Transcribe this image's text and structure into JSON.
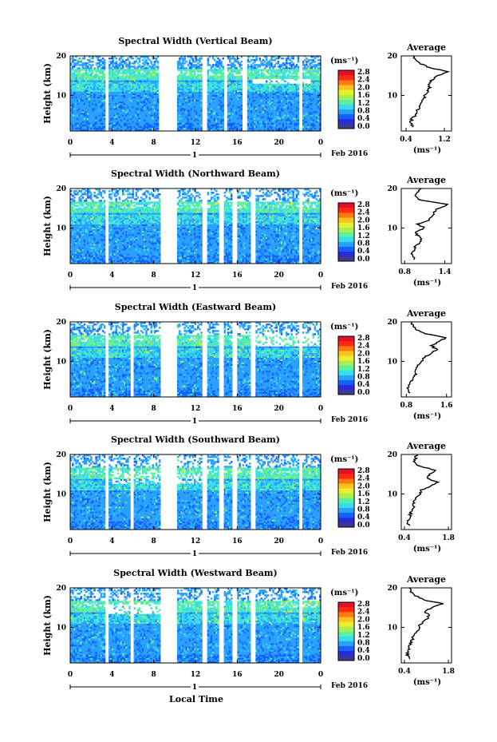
{
  "figure": {
    "xlabel": "Local Time",
    "date_label": "Feb 2016",
    "day_marker": "1",
    "average_title": "Average",
    "colorbar_unit": "(ms⁻¹)",
    "avg_xlabel": "(ms⁻¹)"
  },
  "colorbar": {
    "ticks": [
      "2.8",
      "2.4",
      "2.0",
      "1.6",
      "1.2",
      "0.8",
      "0.4",
      "0.0"
    ],
    "colors": [
      "#3b3b8e",
      "#2a2ad6",
      "#1560ff",
      "#2aa0ff",
      "#37dcf0",
      "#5cf0a0",
      "#a8f050",
      "#e8f030",
      "#ffc020",
      "#ff7a10",
      "#ff2a10",
      "#e0102a"
    ]
  },
  "chart_data": [
    {
      "type": "heatmap",
      "title": "Spectral Width (Vertical Beam)",
      "xlabel": "Local Time",
      "ylabel": "Height (km)",
      "x_ticks": [
        "0",
        "4",
        "8",
        "12",
        "16",
        "20",
        "0"
      ],
      "y_ticks": [
        "20",
        "10"
      ],
      "xlim": [
        0,
        24
      ],
      "ylim": [
        1,
        20
      ],
      "gaps": [
        [
          3.3,
          3.6
        ],
        [
          8.5,
          10.2
        ],
        [
          12.7,
          13.2
        ],
        [
          14.7,
          15.0
        ],
        [
          16.5,
          16.9
        ],
        [
          22.0,
          22.3
        ]
      ],
      "average": {
        "title": "Average",
        "xlabel": "(ms⁻¹)",
        "x_ticks": [
          "0.4",
          "1.2"
        ],
        "x_tick_values": [
          0.4,
          1.2
        ],
        "xlim": [
          0.3,
          1.35
        ],
        "y_ticks": [
          "20",
          "10"
        ],
        "height": [
          2,
          3,
          4,
          5,
          6,
          7,
          8,
          9,
          10,
          11,
          12,
          13,
          14,
          15,
          16,
          17,
          18,
          19,
          20
        ],
        "value": [
          0.55,
          0.5,
          0.52,
          0.6,
          0.62,
          0.68,
          0.7,
          0.75,
          0.8,
          0.85,
          0.9,
          0.88,
          0.95,
          1.05,
          1.3,
          0.9,
          0.7,
          0.6,
          0.55
        ]
      }
    },
    {
      "type": "heatmap",
      "title": "Spectral Width (Northward Beam)",
      "xlabel": "Local Time",
      "ylabel": "Height (km)",
      "x_ticks": [
        "0",
        "4",
        "8",
        "12",
        "16",
        "20",
        "0"
      ],
      "y_ticks": [
        "20",
        "10"
      ],
      "xlim": [
        0,
        24
      ],
      "ylim": [
        1,
        20
      ],
      "gaps": [
        [
          3.3,
          3.6
        ],
        [
          8.6,
          10.2
        ],
        [
          12.7,
          13.1
        ],
        [
          14.3,
          14.7
        ],
        [
          15.6,
          16.0
        ],
        [
          17.3,
          17.7
        ],
        [
          22.0,
          22.3
        ]
      ],
      "average": {
        "title": "Average",
        "xlabel": "(ms⁻¹)",
        "x_ticks": [
          "0.8",
          "1.4"
        ],
        "x_tick_values": [
          0.8,
          1.4
        ],
        "xlim": [
          0.75,
          1.5
        ],
        "y_ticks": [
          "20",
          "10"
        ],
        "height": [
          2,
          3,
          4,
          5,
          6,
          7,
          8,
          9,
          10,
          11,
          12,
          13,
          14,
          15,
          16,
          17,
          18,
          19,
          20
        ],
        "value": [
          0.95,
          0.9,
          0.92,
          0.95,
          1.0,
          1.05,
          1.0,
          0.95,
          1.1,
          1.0,
          1.15,
          1.2,
          1.25,
          1.3,
          1.45,
          1.05,
          0.95,
          1.0,
          1.05
        ]
      }
    },
    {
      "type": "heatmap",
      "title": "Spectral Width (Eastward Beam)",
      "xlabel": "Local Time",
      "ylabel": "Height (km)",
      "x_ticks": [
        "0",
        "4",
        "8",
        "12",
        "16",
        "20",
        "0"
      ],
      "y_ticks": [
        "20",
        "10"
      ],
      "xlim": [
        0,
        24
      ],
      "ylim": [
        1,
        20
      ],
      "gaps": [
        [
          3.3,
          3.6
        ],
        [
          5.8,
          6.1
        ],
        [
          8.6,
          10.2
        ],
        [
          12.7,
          13.1
        ],
        [
          14.3,
          14.7
        ],
        [
          15.6,
          16.0
        ],
        [
          17.3,
          17.7
        ],
        [
          22.0,
          22.3
        ]
      ],
      "average": {
        "title": "Average",
        "xlabel": "(ms⁻¹)",
        "x_ticks": [
          "0.8",
          "1.6"
        ],
        "x_tick_values": [
          0.8,
          1.6
        ],
        "xlim": [
          0.7,
          1.7
        ],
        "y_ticks": [
          "20",
          "10"
        ],
        "height": [
          2,
          3,
          4,
          5,
          6,
          7,
          8,
          9,
          10,
          11,
          12,
          13,
          14,
          15,
          16,
          17,
          18,
          19,
          20
        ],
        "value": [
          0.85,
          0.82,
          0.85,
          0.9,
          0.95,
          1.0,
          1.0,
          1.0,
          1.1,
          1.15,
          1.3,
          1.4,
          1.3,
          1.45,
          1.6,
          1.2,
          1.0,
          0.95,
          0.9
        ]
      }
    },
    {
      "type": "heatmap",
      "title": "Spectral Width (Southward Beam)",
      "xlabel": "Local Time",
      "ylabel": "Height (km)",
      "x_ticks": [
        "0",
        "4",
        "8",
        "12",
        "16",
        "20",
        "0"
      ],
      "y_ticks": [
        "20",
        "10"
      ],
      "xlim": [
        0,
        24
      ],
      "ylim": [
        1,
        20
      ],
      "gaps": [
        [
          3.3,
          3.6
        ],
        [
          5.8,
          6.1
        ],
        [
          8.6,
          10.2
        ],
        [
          12.7,
          13.1
        ],
        [
          14.3,
          14.7
        ],
        [
          15.6,
          16.0
        ],
        [
          17.3,
          17.7
        ],
        [
          22.0,
          22.3
        ]
      ],
      "average": {
        "title": "Average",
        "xlabel": "(ms⁻¹)",
        "x_ticks": [
          "0.4",
          "1.8"
        ],
        "x_tick_values": [
          0.4,
          1.8
        ],
        "xlim": [
          0.3,
          1.9
        ],
        "y_ticks": [
          "20",
          "10"
        ],
        "height": [
          2,
          3,
          4,
          5,
          6,
          7,
          8,
          9,
          10,
          11,
          12,
          13,
          14,
          15,
          16,
          17,
          18,
          19,
          20
        ],
        "value": [
          0.55,
          0.5,
          0.55,
          0.6,
          0.65,
          0.7,
          0.7,
          0.75,
          0.9,
          0.95,
          1.2,
          1.5,
          1.1,
          1.2,
          1.4,
          0.9,
          0.7,
          0.75,
          0.8
        ]
      }
    },
    {
      "type": "heatmap",
      "title": "Spectral Width (Westward Beam)",
      "xlabel": "Local Time",
      "ylabel": "Height (km)",
      "x_ticks": [
        "0",
        "4",
        "8",
        "12",
        "16",
        "20",
        "0"
      ],
      "y_ticks": [
        "20",
        "10"
      ],
      "xlim": [
        0,
        24
      ],
      "ylim": [
        1,
        20
      ],
      "gaps": [
        [
          3.3,
          3.6
        ],
        [
          5.8,
          6.1
        ],
        [
          8.6,
          10.2
        ],
        [
          12.7,
          13.1
        ],
        [
          14.3,
          14.7
        ],
        [
          15.6,
          16.0
        ],
        [
          17.3,
          17.7
        ],
        [
          22.0,
          22.3
        ]
      ],
      "average": {
        "title": "Average",
        "xlabel": "(ms⁻¹)",
        "x_ticks": [
          "0.4",
          "1.8"
        ],
        "x_tick_values": [
          0.4,
          1.8
        ],
        "xlim": [
          0.3,
          1.9
        ],
        "y_ticks": [
          "20",
          "10"
        ],
        "height": [
          2,
          3,
          4,
          5,
          6,
          7,
          8,
          9,
          10,
          11,
          12,
          13,
          14,
          15,
          16,
          17,
          18,
          19,
          20
        ],
        "value": [
          0.55,
          0.5,
          0.5,
          0.55,
          0.6,
          0.65,
          0.7,
          0.8,
          0.85,
          0.95,
          1.1,
          1.2,
          1.05,
          1.3,
          1.6,
          1.0,
          0.75,
          0.6,
          0.55
        ]
      }
    }
  ]
}
